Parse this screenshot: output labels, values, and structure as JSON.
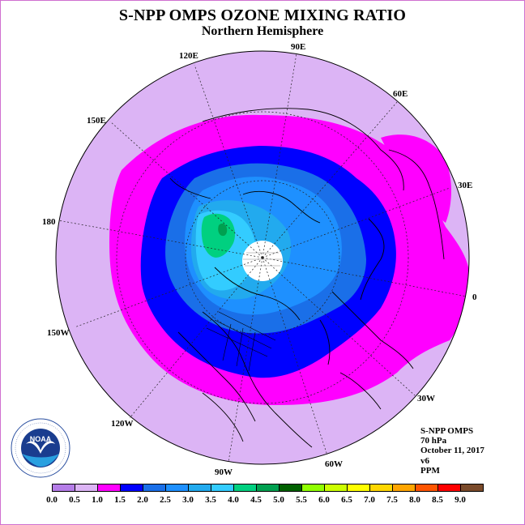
{
  "title": "S-NPP OMPS OZONE MIXING RATIO",
  "subtitle": "Northern Hemisphere",
  "map": {
    "projection": "polar stereographic, north pole",
    "longitude_labels": [
      {
        "text": "90E"
      },
      {
        "text": "60E"
      },
      {
        "text": "120E"
      },
      {
        "text": "150E"
      },
      {
        "text": "30E"
      },
      {
        "text": "180"
      },
      {
        "text": "0"
      },
      {
        "text": "150W"
      },
      {
        "text": "30W"
      },
      {
        "text": "120W"
      },
      {
        "text": "60W"
      },
      {
        "text": "90W"
      }
    ],
    "field_description_levels_ppm": [
      "1.0-1.5 outer ring (magenta)",
      "1.5-2.0 (blue)",
      "2.0-3.5 (light blue)",
      "3.5-4.5 (cyan/green)"
    ],
    "colors": {
      "c0": "#b57de8",
      "c05": "#dcb4f5",
      "c1": "#ff00ff",
      "c15": "#0000ff",
      "c2": "#1a6fe8",
      "c25": "#1e90ff",
      "c3": "#22aaee",
      "c35": "#33ccff",
      "c4": "#00d080",
      "c45": "#00a050",
      "c5": "#006000",
      "c55": "#90ff00",
      "c6": "#ccff00",
      "c65": "#ffff00",
      "c7": "#ffd700",
      "c75": "#ffa500",
      "c8": "#ff5500",
      "c85": "#ff0000",
      "c9": "#7a4a2a"
    }
  },
  "info": {
    "instrument": "S-NPP OMPS",
    "pressure": "70 hPa",
    "date": "October 11, 2017",
    "version": "v6",
    "units": "PPM"
  },
  "colorbar": {
    "ticks": [
      "0.0",
      "0.5",
      "1.0",
      "1.5",
      "2.0",
      "2.5",
      "3.0",
      "3.5",
      "4.0",
      "4.5",
      "5.0",
      "5.5",
      "6.0",
      "6.5",
      "7.0",
      "7.5",
      "8.0",
      "8.5",
      "9.0"
    ],
    "colors": [
      "#b57de8",
      "#dcb4f5",
      "#ff00ff",
      "#0000ff",
      "#1a6fe8",
      "#1e90ff",
      "#22aaee",
      "#33ccff",
      "#00d080",
      "#00a050",
      "#006000",
      "#90ff00",
      "#ccff00",
      "#ffff00",
      "#ffd700",
      "#ffa500",
      "#ff5500",
      "#ff0000",
      "#7a4a2a"
    ]
  },
  "logo": {
    "text": "NOAA",
    "ring_text": "NATIONAL OCEANIC AND ATMOSPHERIC ADMINISTRATION · U.S. DEPARTMENT OF COMMERCE"
  }
}
